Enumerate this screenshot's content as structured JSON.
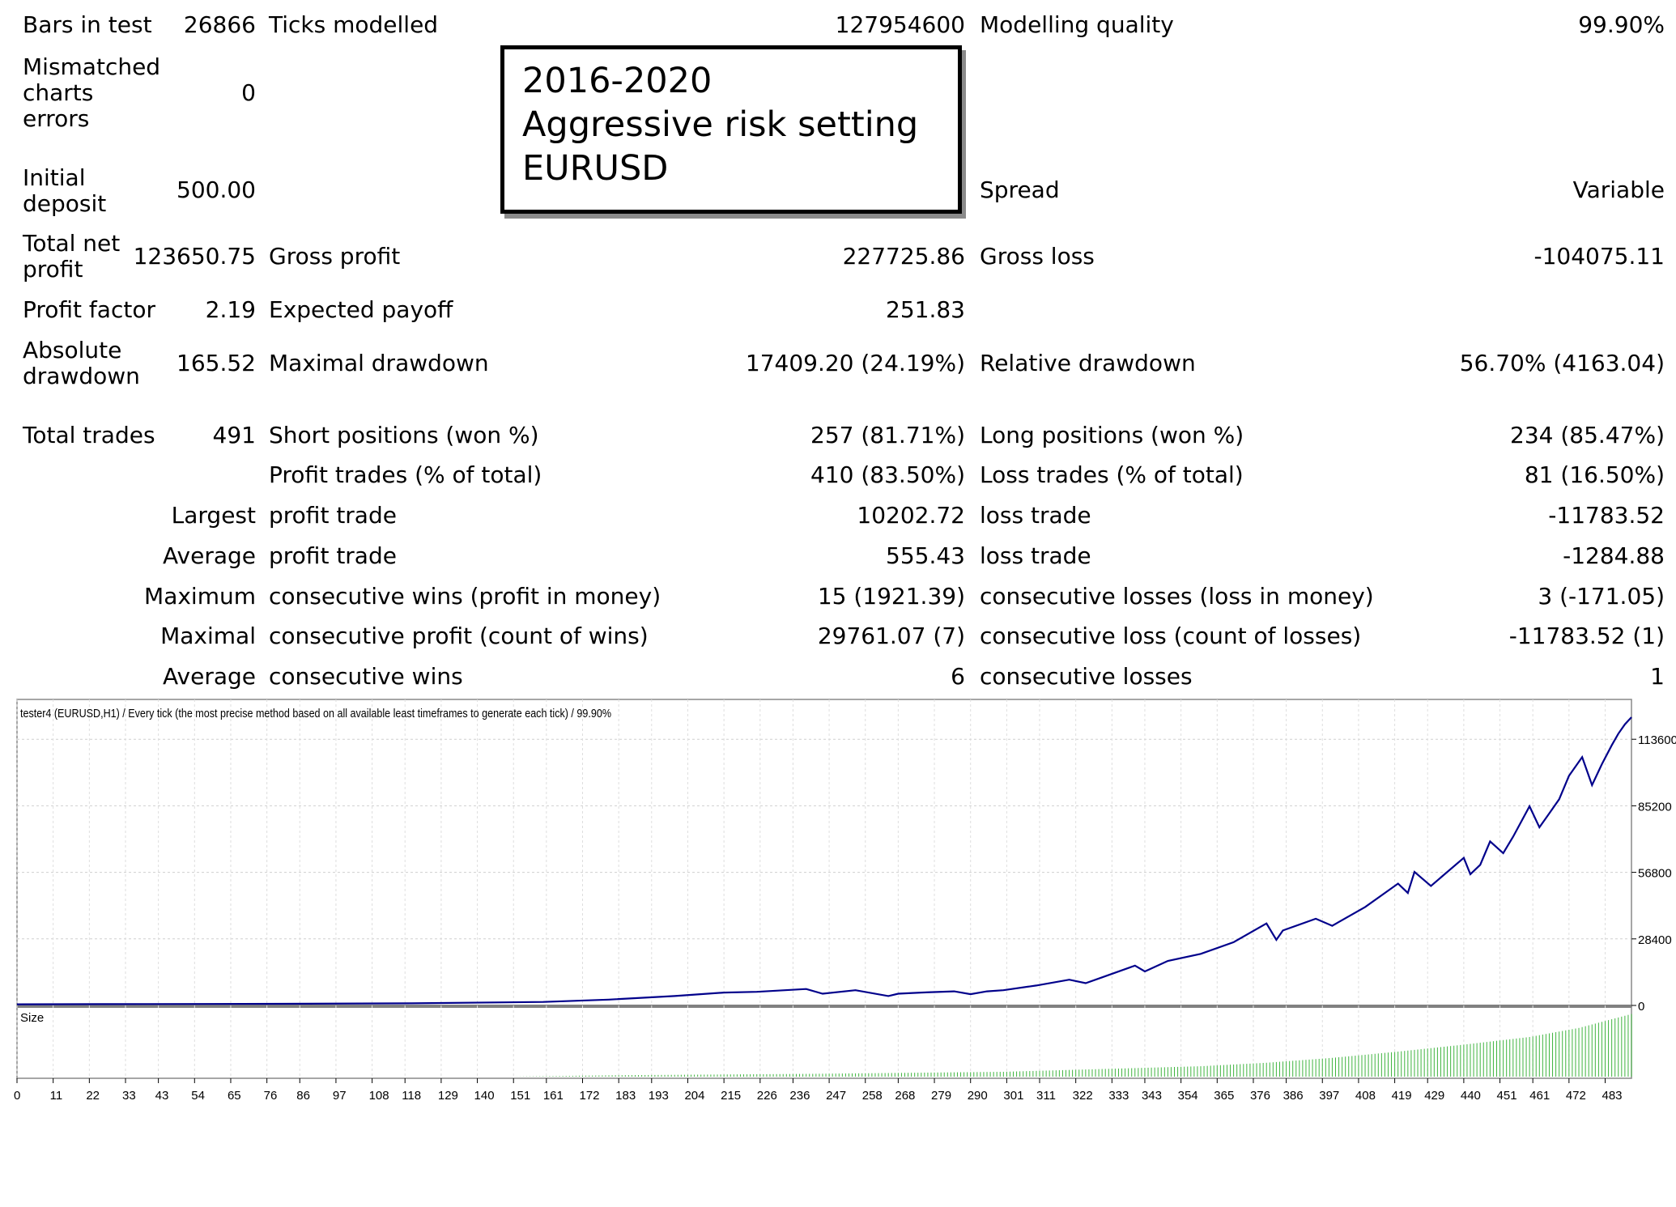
{
  "annotation": {
    "line1": "2016-2020",
    "line2": "Aggressive risk setting",
    "line3": "EURUSD"
  },
  "report": {
    "bars_label": "Bars in test",
    "bars_value": "26866",
    "ticks_label": "Ticks modelled",
    "ticks_value": "127954600",
    "quality_label": "Modelling quality",
    "quality_value": "99.90%",
    "mismatch_label": [
      "Mismatched",
      "charts",
      "errors"
    ],
    "mismatch_value": "0",
    "deposit_label": [
      "Initial",
      "deposit"
    ],
    "deposit_value": "500.00",
    "spread_label": "Spread",
    "spread_value": "Variable",
    "netprofit_label": [
      "Total net",
      "profit"
    ],
    "netprofit_value": "123650.75",
    "grossprofit_label": "Gross profit",
    "grossprofit_value": "227725.86",
    "grossloss_label": "Gross loss",
    "grossloss_value": "-104075.11",
    "pf_label": "Profit factor",
    "pf_value": "2.19",
    "payoff_label": "Expected payoff",
    "payoff_value": "251.83",
    "absdd_label": [
      "Absolute",
      "drawdown"
    ],
    "absdd_value": "165.52",
    "maxdd_label": "Maximal drawdown",
    "maxdd_value": "17409.20 (24.19%)",
    "reldd_label": "Relative drawdown",
    "reldd_value": "56.70% (4163.04)",
    "trades_label": "Total trades",
    "trades_value": "491",
    "short_label": "Short positions (won %)",
    "short_value": "257 (81.71%)",
    "long_label": "Long positions (won %)",
    "long_value": "234 (85.47%)",
    "ptrades_label": "Profit trades (% of total)",
    "ptrades_value": "410 (83.50%)",
    "ltrades_label": "Loss trades (% of total)",
    "ltrades_value": "81 (16.50%)",
    "largest_label": "Largest",
    "largest_profit_label": "profit trade",
    "largest_profit_value": "10202.72",
    "largest_loss_label": "loss trade",
    "largest_loss_value": "-11783.52",
    "average_label": "Average",
    "average_profit_label": "profit trade",
    "average_profit_value": "555.43",
    "average_loss_label": "loss trade",
    "average_loss_value": "-1284.88",
    "maximum_label": "Maximum",
    "max_wins_label": "consecutive wins (profit in money)",
    "max_wins_value": "15 (1921.39)",
    "max_losses_label": "consecutive losses (loss in money)",
    "max_losses_value": "3 (-171.05)",
    "maximal_label": "Maximal",
    "maximal_profit_label": "consecutive profit (count of wins)",
    "maximal_profit_value": "29761.07 (7)",
    "maximal_loss_label": "consecutive loss (count of losses)",
    "maximal_loss_value": "-11783.52 (1)",
    "avgcons_label": "Average",
    "avg_wins_label": "consecutive wins",
    "avg_wins_value": "6",
    "avg_losses_label": "consecutive losses",
    "avg_losses_value": "1"
  },
  "chart_data": {
    "type": "line",
    "title": "tester4 (EURUSD,H1) / Every tick (the most precise method based on all available least timeframes to generate each tick) / 99.90%",
    "sub_label": "Size",
    "y_ticks": [
      0,
      28400,
      56800,
      85200,
      113600
    ],
    "ylim": [
      0,
      123000
    ],
    "xlim": [
      0,
      491
    ],
    "x_ticks": [
      0,
      11,
      22,
      33,
      43,
      54,
      65,
      76,
      86,
      97,
      108,
      118,
      129,
      140,
      151,
      161,
      172,
      183,
      193,
      204,
      215,
      226,
      236,
      247,
      258,
      268,
      279,
      290,
      301,
      311,
      322,
      333,
      343,
      354,
      365,
      376,
      386,
      397,
      408,
      419,
      429,
      440,
      451,
      461,
      472,
      483
    ],
    "balance_color": "#00008b",
    "size_color": "#3fb43f",
    "series": [
      {
        "name": "Balance",
        "x": [
          0,
          40,
          80,
          120,
          160,
          180,
          200,
          215,
          225,
          240,
          245,
          255,
          265,
          268,
          275,
          285,
          290,
          295,
          300,
          310,
          320,
          325,
          330,
          340,
          343,
          350,
          360,
          370,
          380,
          383,
          385,
          395,
          400,
          410,
          420,
          423,
          425,
          430,
          440,
          442,
          445,
          448,
          452,
          455,
          460,
          463,
          466,
          469,
          472,
          476,
          479,
          482,
          485,
          487,
          489,
          491
        ],
        "y": [
          500,
          600,
          700,
          900,
          1500,
          2500,
          4000,
          5500,
          5800,
          7000,
          5000,
          6500,
          4000,
          5000,
          5500,
          6000,
          4800,
          6000,
          6500,
          8500,
          11000,
          9500,
          12000,
          17000,
          14500,
          19000,
          22000,
          27000,
          35000,
          28000,
          32000,
          37000,
          34000,
          42000,
          52000,
          48000,
          57000,
          51000,
          63000,
          56000,
          60000,
          70000,
          65000,
          72000,
          85000,
          76000,
          82000,
          88000,
          98000,
          106000,
          94000,
          103000,
          111000,
          116000,
          120000,
          123000
        ]
      },
      {
        "name": "Size",
        "x": [
          0,
          150,
          180,
          240,
          300,
          330,
          360,
          380,
          400,
          420,
          440,
          460,
          475,
          491
        ],
        "y": [
          0,
          0,
          0.02,
          0.04,
          0.07,
          0.11,
          0.15,
          0.2,
          0.27,
          0.36,
          0.46,
          0.57,
          0.7,
          0.9
        ]
      }
    ]
  }
}
